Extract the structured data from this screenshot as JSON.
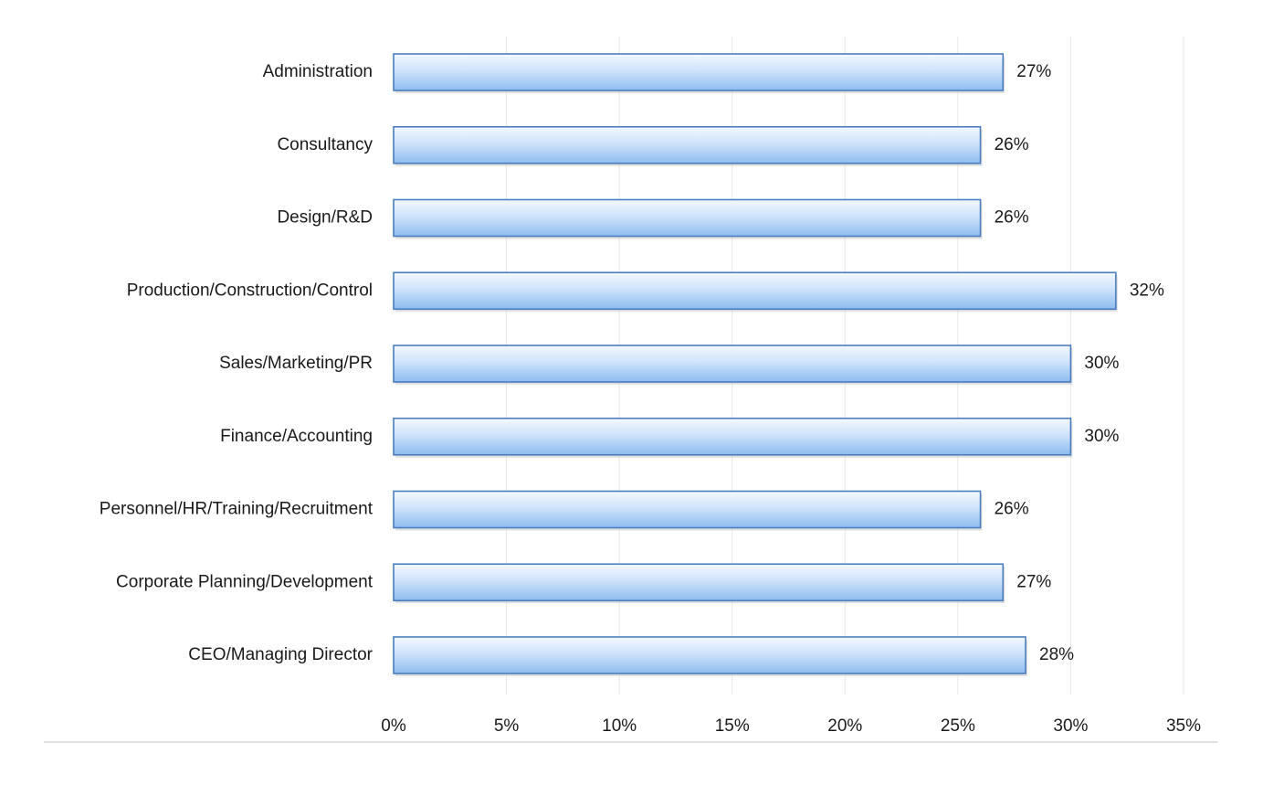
{
  "chart_data": {
    "type": "bar",
    "orientation": "horizontal",
    "categories": [
      "Administration",
      "Consultancy",
      "Design/R&D",
      "Production/Construction/Control",
      "Sales/Marketing/PR",
      "Finance/Accounting",
      "Personnel/HR/Training/Recruitment",
      "Corporate Planning/Development",
      "CEO/Managing Director"
    ],
    "values": [
      27,
      26,
      26,
      32,
      30,
      30,
      26,
      27,
      28
    ],
    "data_labels": [
      "27%",
      "26%",
      "26%",
      "32%",
      "30%",
      "30%",
      "26%",
      "27%",
      "28%"
    ],
    "x_ticks": [
      0,
      5,
      10,
      15,
      20,
      25,
      30,
      35
    ],
    "x_tick_labels": [
      "0%",
      "5%",
      "10%",
      "15%",
      "20%",
      "25%",
      "30%",
      "35%"
    ],
    "xlim": [
      0,
      35
    ],
    "unit": "%",
    "grid": "vertical",
    "legend": "none",
    "bar_color": "#a9cdf5",
    "bar_edge_color": "#4a7ebf"
  }
}
